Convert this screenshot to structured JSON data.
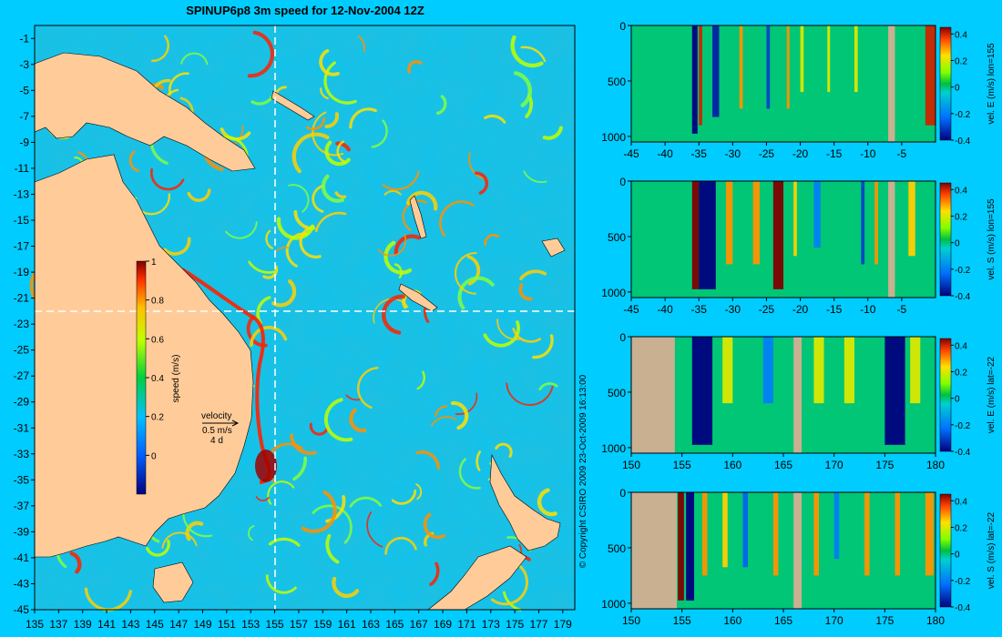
{
  "page": {
    "background": "#00ccff",
    "land_color": "#ffcc99",
    "section_land_color": "#c8b090"
  },
  "chart_data": [
    {
      "type": "heatmap",
      "title": "SPINUP6p8 3m speed for 12-Nov-2004 12Z",
      "x_ticks": [
        "135",
        "137",
        "139",
        "141",
        "143",
        "145",
        "147",
        "149",
        "151",
        "153",
        "155",
        "157",
        "159",
        "161",
        "163",
        "165",
        "167",
        "169",
        "171",
        "173",
        "175",
        "177",
        "179"
      ],
      "y_ticks": [
        "-1",
        "-3",
        "-5",
        "-7",
        "-9",
        "-11",
        "-13",
        "-15",
        "-17",
        "-19",
        "-21",
        "-23",
        "-25",
        "-27",
        "-29",
        "-31",
        "-33",
        "-35",
        "-37",
        "-39",
        "-41",
        "-43",
        "-45"
      ],
      "xlim": [
        135,
        180
      ],
      "ylim": [
        -45,
        0
      ],
      "section_lines": {
        "lon": 155,
        "lat": -22
      },
      "colorbar": {
        "label": "speed (m/s)",
        "ticks": [
          "1",
          "0.8",
          "0.6",
          "0.4",
          "0.2",
          "0"
        ],
        "range": [
          -0.2,
          1
        ]
      },
      "velocity_legend": {
        "title": "velocity",
        "scale": "0.5 m/s",
        "step": "4 d"
      },
      "copyright": "© Copyright CSIRO 2009   23-Oct-2009 16:13:00"
    },
    {
      "type": "heatmap",
      "panel_label": "vel. E (m/s) lon=155",
      "x_ticks": [
        "-45",
        "-40",
        "-35",
        "-30",
        "-25",
        "-20",
        "-15",
        "-10",
        "-5"
      ],
      "xlim": [
        -45,
        0
      ],
      "y_ticks": [
        "0",
        "500",
        "1000"
      ],
      "ylim": [
        0,
        1050
      ],
      "colorbar_ticks": [
        "0.4",
        "0.2",
        "0",
        "-0.2",
        "-0.4"
      ],
      "range": [
        -0.4,
        0.45
      ],
      "land_x": [
        [
          -7,
          -6
        ]
      ],
      "jets": [
        [
          -36,
          -35.2,
          -0.45
        ],
        [
          -35,
          -34.5,
          0.4
        ],
        [
          -33,
          -32,
          -0.35
        ],
        [
          -29,
          -28.5,
          0.3
        ],
        [
          -25,
          -24.5,
          -0.3
        ],
        [
          -22,
          -21.6,
          0.3
        ],
        [
          -20,
          -19.5,
          0.2
        ],
        [
          -16,
          -15.6,
          0.2
        ],
        [
          -12,
          -11.5,
          0.2
        ],
        [
          -1.5,
          0,
          0.4
        ]
      ]
    },
    {
      "type": "heatmap",
      "panel_label": "vel. S (m/s) lon=155",
      "x_ticks": [
        "-45",
        "-40",
        "-35",
        "-30",
        "-25",
        "-20",
        "-15",
        "-10",
        "-5"
      ],
      "xlim": [
        -45,
        0
      ],
      "y_ticks": [
        "0",
        "500",
        "1000"
      ],
      "ylim": [
        0,
        1050
      ],
      "colorbar_ticks": [
        "0.4",
        "0.2",
        "0",
        "-0.2",
        "-0.4"
      ],
      "range": [
        -0.4,
        0.45
      ],
      "land_x": [
        [
          -7,
          -6
        ]
      ],
      "jets": [
        [
          -36,
          -35,
          0.45
        ],
        [
          -35,
          -32.5,
          -0.45
        ],
        [
          -31,
          -30,
          0.3
        ],
        [
          -27,
          -26,
          0.3
        ],
        [
          -24,
          -22.5,
          0.45
        ],
        [
          -21,
          -20.5,
          0.25
        ],
        [
          -18,
          -17,
          -0.2
        ],
        [
          -11,
          -10.5,
          -0.3
        ],
        [
          -9,
          -8.5,
          0.3
        ],
        [
          -4,
          -3,
          0.25
        ]
      ]
    },
    {
      "type": "heatmap",
      "panel_label": "vel. E (m/s) lat=-22",
      "x_ticks": [
        "150",
        "155",
        "160",
        "165",
        "170",
        "175",
        "180"
      ],
      "xlim": [
        150,
        180
      ],
      "y_ticks": [
        "0",
        "500",
        "1000"
      ],
      "ylim": [
        0,
        1050
      ],
      "colorbar_ticks": [
        "0.4",
        "0.2",
        "0",
        "-0.2",
        "-0.4"
      ],
      "range": [
        -0.4,
        0.45
      ],
      "land_x": [
        [
          150,
          154.3
        ],
        [
          166,
          166.8
        ]
      ],
      "jets": [
        [
          156,
          158,
          -0.45
        ],
        [
          159,
          160,
          0.2
        ],
        [
          163,
          164,
          -0.2
        ],
        [
          168,
          169,
          0.2
        ],
        [
          171,
          172,
          0.2
        ],
        [
          175,
          177,
          -0.45
        ],
        [
          177.5,
          178.5,
          0.2
        ]
      ]
    },
    {
      "type": "heatmap",
      "panel_label": "vel. S (m/s) lat=-22",
      "x_ticks": [
        "150",
        "155",
        "160",
        "165",
        "170",
        "175",
        "180"
      ],
      "xlim": [
        150,
        180
      ],
      "y_ticks": [
        "0",
        "500",
        "1000"
      ],
      "ylim": [
        0,
        1050
      ],
      "colorbar_ticks": [
        "0.4",
        "0.2",
        "0",
        "-0.2",
        "-0.4"
      ],
      "range": [
        -0.4,
        0.45
      ],
      "land_x": [
        [
          150,
          154.5
        ],
        [
          166,
          166.8
        ]
      ],
      "jets": [
        [
          154.6,
          155.2,
          0.45
        ],
        [
          155.4,
          156.2,
          -0.45
        ],
        [
          157,
          157.5,
          0.3
        ],
        [
          159,
          159.5,
          0.25
        ],
        [
          161,
          161.5,
          -0.25
        ],
        [
          164,
          164.5,
          0.3
        ],
        [
          168,
          168.5,
          0.3
        ],
        [
          170,
          170.5,
          -0.2
        ],
        [
          173,
          173.5,
          0.3
        ],
        [
          176,
          176.5,
          0.3
        ],
        [
          179,
          179.8,
          0.3
        ]
      ]
    }
  ]
}
